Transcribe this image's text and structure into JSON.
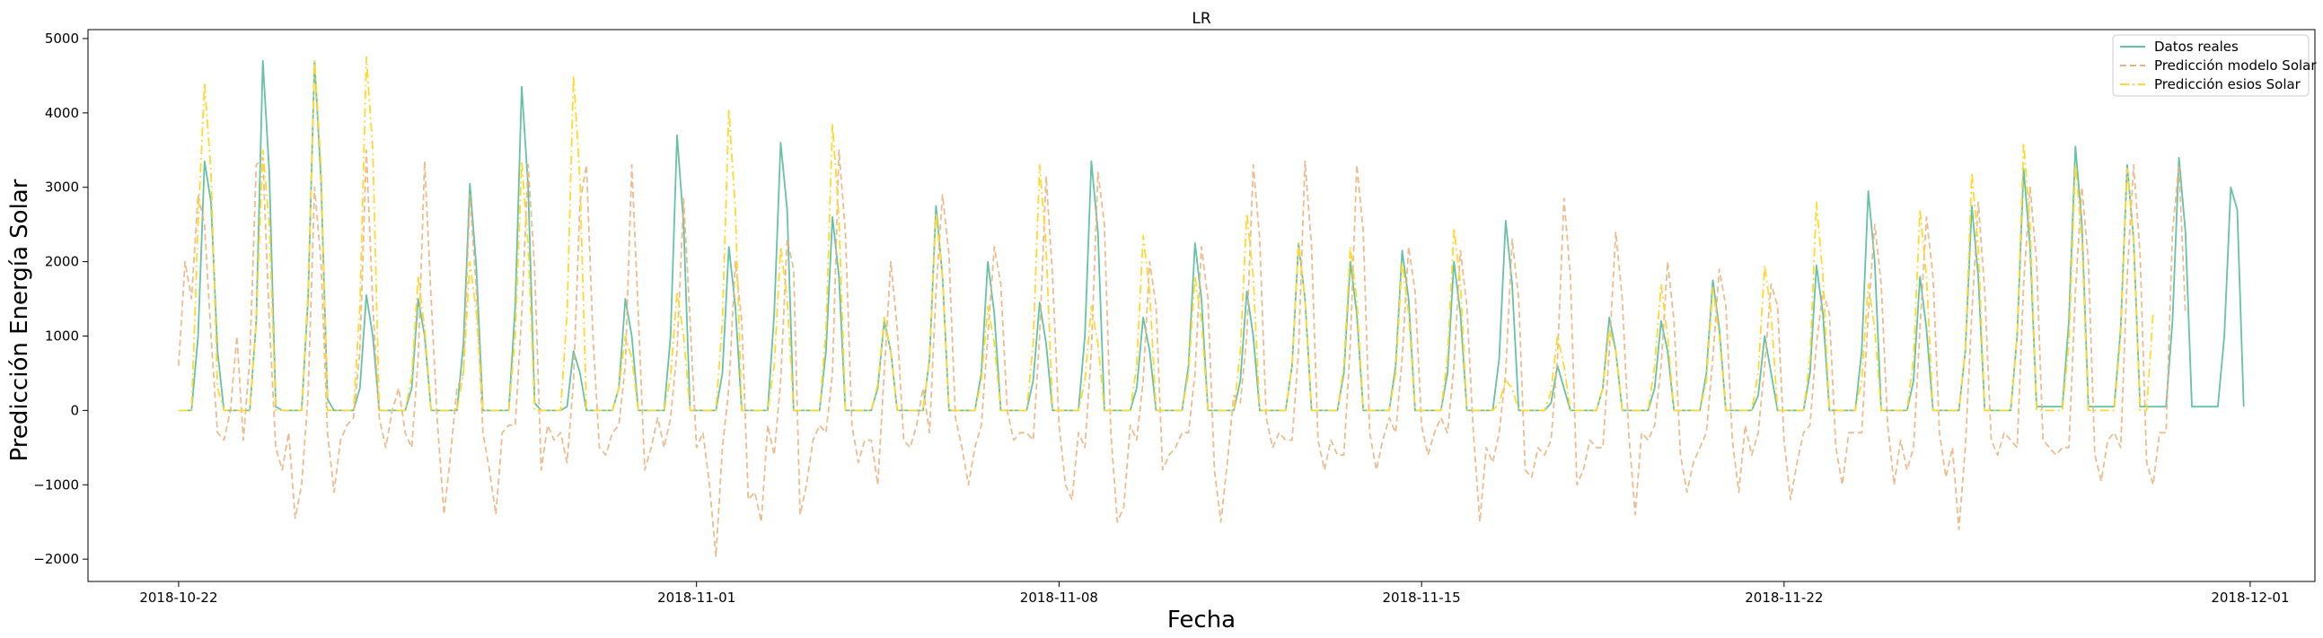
{
  "chart_data": {
    "type": "line",
    "title": "LR",
    "xlabel": "Fecha",
    "ylabel": "Predicción Energía Solar",
    "x_range": [
      "2018-10-20T06:00",
      "2018-12-02T06:00"
    ],
    "x_start": "2018-10-22T00:00",
    "x_step_hours": 3,
    "ylim": [
      -2300,
      5120
    ],
    "grid": false,
    "legend_position": "top-right",
    "x_ticks": [
      "2018-10-22",
      "2018-11-01",
      "2018-11-08",
      "2018-11-15",
      "2018-11-22",
      "2018-12-01"
    ],
    "y_ticks": [
      -2000,
      -1000,
      0,
      1000,
      2000,
      3000,
      4000,
      5000
    ],
    "y_tick_labels": [
      "−2000",
      "−1000",
      "0",
      "1000",
      "2000",
      "3000",
      "4000",
      "5000"
    ],
    "series": [
      {
        "name": "Datos reales",
        "color": "#66c2a5",
        "style": "solid",
        "values": [
          0,
          0,
          0,
          1000,
          3350,
          2800,
          800,
          0,
          0,
          0,
          0,
          0,
          1200,
          4700,
          3200,
          50,
          0,
          0,
          0,
          0,
          1500,
          4700,
          3100,
          150,
          0,
          0,
          0,
          0,
          300,
          1550,
          1000,
          0,
          0,
          0,
          0,
          0,
          300,
          1500,
          1000,
          0,
          0,
          0,
          0,
          0,
          900,
          3050,
          1900,
          0,
          0,
          0,
          0,
          0,
          1400,
          4350,
          3000,
          100,
          0,
          0,
          0,
          0,
          50,
          800,
          500,
          0,
          0,
          0,
          0,
          0,
          300,
          1500,
          1000,
          0,
          0,
          0,
          0,
          0,
          1000,
          3700,
          2500,
          0,
          0,
          0,
          0,
          0,
          500,
          2200,
          1400,
          0,
          0,
          0,
          0,
          0,
          1300,
          3600,
          2700,
          0,
          0,
          0,
          0,
          0,
          800,
          2600,
          1800,
          0,
          0,
          0,
          0,
          0,
          300,
          1200,
          800,
          0,
          0,
          0,
          0,
          0,
          700,
          2750,
          1800,
          0,
          0,
          0,
          0,
          0,
          500,
          2000,
          1300,
          0,
          0,
          0,
          0,
          0,
          400,
          1450,
          900,
          0,
          0,
          0,
          0,
          0,
          1000,
          3350,
          2400,
          0,
          0,
          0,
          0,
          0,
          300,
          1250,
          800,
          0,
          0,
          0,
          0,
          0,
          600,
          2250,
          1500,
          0,
          0,
          0,
          0,
          0,
          400,
          1600,
          1000,
          0,
          0,
          0,
          0,
          0,
          600,
          2250,
          1500,
          0,
          0,
          0,
          0,
          0,
          500,
          2000,
          1300,
          0,
          0,
          0,
          0,
          0,
          600,
          2150,
          1500,
          0,
          0,
          0,
          0,
          0,
          500,
          2000,
          1300,
          0,
          0,
          0,
          0,
          0,
          700,
          2550,
          1700,
          0,
          0,
          0,
          0,
          0,
          100,
          600,
          300,
          0,
          0,
          0,
          0,
          0,
          300,
          1250,
          800,
          0,
          0,
          0,
          0,
          0,
          300,
          1200,
          800,
          0,
          0,
          0,
          0,
          0,
          500,
          1750,
          1100,
          0,
          0,
          0,
          0,
          0,
          200,
          1000,
          500,
          0,
          0,
          0,
          0,
          0,
          500,
          1950,
          1300,
          0,
          0,
          0,
          0,
          0,
          800,
          2950,
          2000,
          0,
          0,
          0,
          0,
          0,
          400,
          1800,
          1100,
          0,
          0,
          0,
          0,
          0,
          800,
          2750,
          1800,
          0,
          0,
          0,
          0,
          0,
          1000,
          3250,
          2200,
          50,
          50,
          50,
          50,
          50,
          1200,
          3550,
          2500,
          50,
          50,
          50,
          50,
          50,
          1100,
          3300,
          2300,
          50,
          50,
          50,
          50,
          50,
          1200,
          3400,
          2400,
          50,
          50,
          50,
          50,
          50,
          1000,
          3000,
          2700,
          50
        ],
        "values_note": "3-hourly, 2018-10-22 00:00 to 2018-11-30 21:00 (approx.)"
      },
      {
        "name": "Predicción modelo Solar",
        "color": "#e8b27c",
        "style": "dashed",
        "values": [
          600,
          2000,
          1500,
          2900,
          2500,
          1000,
          -300,
          -400,
          0,
          1000,
          -400,
          700,
          3300,
          3400,
          1200,
          -500,
          -800,
          -300,
          -1450,
          -1000,
          200,
          3000,
          2000,
          -300,
          -1100,
          -400,
          -200,
          -100,
          800,
          3500,
          1400,
          -100,
          -500,
          0,
          300,
          -300,
          -500,
          700,
          3350,
          1500,
          -200,
          -1400,
          -600,
          300,
          500,
          2900,
          1600,
          -300,
          -800,
          -1400,
          -300,
          -200,
          -200,
          1300,
          3300,
          1900,
          -800,
          -200,
          -400,
          -300,
          -700,
          400,
          2800,
          3300,
          1000,
          -500,
          -600,
          -300,
          -200,
          600,
          3300,
          1300,
          -800,
          -500,
          -100,
          -500,
          -100,
          800,
          2850,
          1200,
          -500,
          -300,
          -1000,
          -1970,
          -500,
          300,
          2000,
          1200,
          -1200,
          -1100,
          -1500,
          -200,
          -600,
          400,
          2300,
          1900,
          -1400,
          -1000,
          -400,
          -200,
          -300,
          500,
          3500,
          2400,
          -200,
          -700,
          -400,
          -400,
          -1000,
          500,
          2000,
          1100,
          -400,
          -500,
          -200,
          300,
          -300,
          1600,
          2900,
          2100,
          -100,
          -500,
          -1000,
          -500,
          -200,
          1000,
          2200,
          1700,
          0,
          -400,
          -300,
          -300,
          -400,
          1000,
          3150,
          1800,
          -200,
          -1000,
          -1200,
          -300,
          -500,
          800,
          3200,
          2500,
          -300,
          -1500,
          -1300,
          -200,
          -400,
          400,
          2000,
          1400,
          -800,
          -600,
          -500,
          -300,
          -300,
          500,
          2200,
          1500,
          -800,
          -1500,
          -700,
          200,
          100,
          1000,
          3300,
          2300,
          -100,
          -500,
          -300,
          -400,
          -400,
          800,
          3350,
          2200,
          -400,
          -800,
          -400,
          -600,
          -600,
          900,
          3300,
          2400,
          -300,
          -800,
          -400,
          -100,
          -300,
          700,
          2200,
          1600,
          -200,
          -600,
          -300,
          -100,
          -300,
          600,
          2150,
          1400,
          -300,
          -1500,
          -500,
          -700,
          -300,
          500,
          2300,
          1500,
          -800,
          -900,
          -500,
          -600,
          -400,
          700,
          2850,
          1800,
          -1000,
          -800,
          -400,
          -500,
          -500,
          800,
          2400,
          1500,
          -300,
          -1400,
          -300,
          -400,
          -200,
          600,
          2000,
          1200,
          -600,
          -1100,
          -700,
          -500,
          -300,
          700,
          1900,
          1400,
          -400,
          -1100,
          -200,
          -600,
          -300,
          600,
          1700,
          1400,
          -400,
          -1200,
          -700,
          -300,
          -200,
          900,
          1600,
          1300,
          -500,
          -1000,
          -300,
          -300,
          -300,
          1300,
          2500,
          1700,
          -200,
          -1000,
          -400,
          -800,
          -500,
          1100,
          2600,
          1800,
          -300,
          -900,
          -500,
          -1600,
          -500,
          1300,
          2800,
          1600,
          -400,
          -600,
          -300,
          -400,
          -500,
          1700,
          3000,
          2000,
          -400,
          -500,
          -600,
          -500,
          -500,
          1600,
          3000,
          2000,
          -600,
          -950,
          -400,
          -300,
          -500,
          1800,
          3300,
          2100,
          -700,
          -1000,
          -300,
          -300,
          2400,
          3300,
          1300
        ]
      },
      {
        "name": "Predicción esios Solar",
        "color": "#ffd92f",
        "style": "dashdot",
        "values": [
          0,
          0,
          0,
          2500,
          4400,
          3200,
          300,
          0,
          0,
          0,
          0,
          0,
          1200,
          3500,
          2500,
          0,
          0,
          0,
          0,
          0,
          1600,
          4700,
          3300,
          0,
          0,
          0,
          0,
          0,
          1400,
          4750,
          3500,
          0,
          0,
          0,
          0,
          0,
          450,
          1800,
          1100,
          0,
          0,
          0,
          0,
          0,
          500,
          2000,
          1300,
          0,
          0,
          0,
          0,
          0,
          1000,
          3350,
          2200,
          0,
          0,
          0,
          0,
          0,
          1300,
          4500,
          3100,
          0,
          0,
          0,
          0,
          0,
          300,
          1000,
          700,
          0,
          0,
          0,
          0,
          0,
          450,
          1600,
          1000,
          0,
          0,
          0,
          0,
          0,
          1200,
          4050,
          2700,
          0,
          0,
          0,
          0,
          0,
          600,
          2200,
          1500,
          0,
          0,
          0,
          0,
          0,
          1100,
          3850,
          2600,
          0,
          0,
          0,
          0,
          0,
          350,
          1250,
          800,
          0,
          0,
          0,
          0,
          0,
          700,
          2650,
          1800,
          0,
          0,
          0,
          0,
          0,
          400,
          1400,
          900,
          0,
          0,
          0,
          0,
          0,
          900,
          3300,
          2200,
          0,
          0,
          0,
          0,
          0,
          400,
          1400,
          900,
          0,
          0,
          0,
          0,
          0,
          600,
          2350,
          1600,
          0,
          0,
          0,
          0,
          0,
          500,
          1800,
          1200,
          0,
          0,
          0,
          0,
          0,
          800,
          2650,
          1800,
          0,
          0,
          0,
          0,
          0,
          600,
          2250,
          1500,
          0,
          0,
          0,
          0,
          0,
          600,
          2200,
          1500,
          0,
          0,
          0,
          0,
          0,
          500,
          2000,
          1300,
          0,
          0,
          0,
          0,
          0,
          700,
          2450,
          1700,
          0,
          0,
          0,
          0,
          0,
          100,
          400,
          300,
          0,
          0,
          0,
          0,
          0,
          250,
          1000,
          600,
          0,
          0,
          0,
          0,
          0,
          300,
          1100,
          800,
          0,
          0,
          0,
          0,
          0,
          600,
          1700,
          1000,
          0,
          0,
          0,
          0,
          0,
          400,
          1650,
          1000,
          0,
          0,
          0,
          0,
          0,
          500,
          1950,
          1300,
          0,
          0,
          0,
          0,
          0,
          700,
          2800,
          1800,
          0,
          0,
          0,
          0,
          0,
          400,
          1700,
          1100,
          0,
          0,
          0,
          0,
          0,
          700,
          2700,
          1800,
          0,
          0,
          0,
          0,
          0,
          800,
          3200,
          2200,
          0,
          0,
          0,
          0,
          0,
          1000,
          3600,
          2500,
          0,
          0,
          0,
          0,
          0,
          900,
          3300,
          2300,
          0,
          0,
          0,
          0,
          0,
          1000,
          3250,
          2300,
          0,
          0,
          1300
        ]
      }
    ]
  }
}
